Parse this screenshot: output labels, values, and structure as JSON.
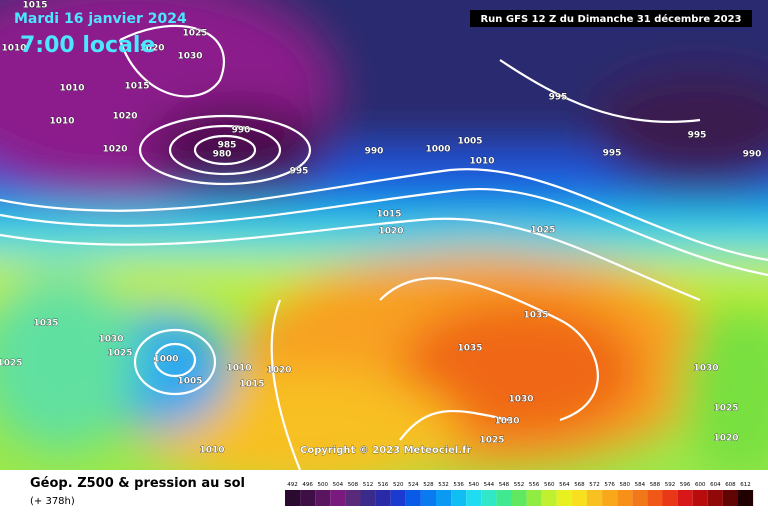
{
  "header": {
    "date": "Mardi 16 janvier 2024",
    "time": "7:00 locale",
    "run": "Run GFS 12 Z du Dimanche 31 décembre 2023"
  },
  "map": {
    "pressure_labels": [
      "1015",
      "1010",
      "1020",
      "1025",
      "1030",
      "1010",
      "1015",
      "1010",
      "1020",
      "1020",
      "990",
      "985",
      "980",
      "995",
      "990",
      "1000",
      "1005",
      "1010",
      "995",
      "995",
      "995",
      "990",
      "1015",
      "1020",
      "1025",
      "1035",
      "1030",
      "1025",
      "1000",
      "1035",
      "1035",
      "1025",
      "1005",
      "1010",
      "1015",
      "1020",
      "1030",
      "1030",
      "1030",
      "1025",
      "1025",
      "1020",
      "1010"
    ],
    "copyright": "Copyright © 2023 Meteociel.fr"
  },
  "footer": {
    "title": "Géop. Z500 & pression au sol",
    "lead": "(+ 378h)"
  },
  "legend": {
    "labels": [
      492,
      496,
      500,
      504,
      508,
      512,
      516,
      520,
      524,
      528,
      532,
      536,
      540,
      544,
      548,
      552,
      556,
      560,
      564,
      568,
      572,
      576,
      580,
      584,
      588,
      592,
      596,
      600,
      604,
      608,
      612
    ],
    "colors": [
      "#2a0a2e",
      "#3e0f45",
      "#5a1460",
      "#7a1a7e",
      "#5a2a7a",
      "#3a2a8a",
      "#2a2aa8",
      "#1a3ad0",
      "#0a5ae8",
      "#0a7af0",
      "#0a9af4",
      "#10bef4",
      "#20dcf0",
      "#30e8c8",
      "#40e890",
      "#60e860",
      "#90ec40",
      "#c0f030",
      "#e8f020",
      "#f8e020",
      "#f8c020",
      "#f8a818",
      "#f89018",
      "#f07818",
      "#f05818",
      "#e83818",
      "#d81818",
      "#b80c0c",
      "#900808",
      "#600404",
      "#200000"
    ]
  }
}
